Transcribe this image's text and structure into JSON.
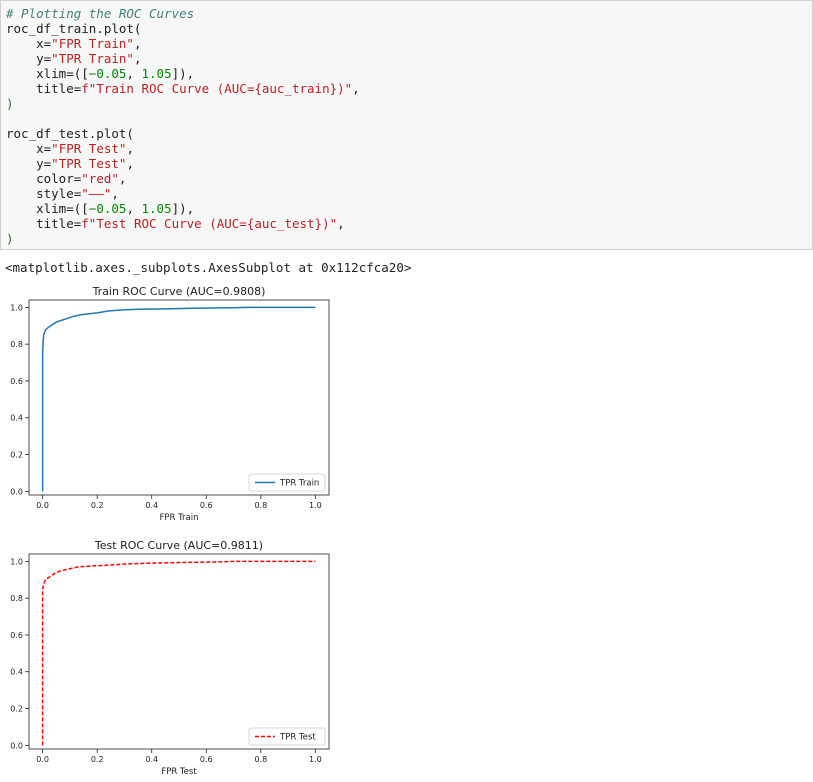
{
  "code_cell": {
    "comment": "# Plotting the ROC Curves",
    "train_call": "roc_df_train.plot(",
    "train_x_key": "x=",
    "train_x_val": "\"FPR Train\"",
    "train_y_key": "y=",
    "train_y_val": "\"TPR Train\"",
    "train_xlim_key": "xlim=([",
    "train_xlim_a": "−0.05",
    "train_xlim_b": "1.05",
    "train_title_key": "title=",
    "train_title_val": "f\"Train ROC Curve (AUC={auc_train})\"",
    "close": ")",
    "test_call": "roc_df_test.plot(",
    "test_x_key": "x=",
    "test_x_val": "\"FPR Test\"",
    "test_y_key": "y=",
    "test_y_val": "\"TPR Test\"",
    "test_color_key": "color=",
    "test_color_val": "\"red\"",
    "test_style_key": "style=",
    "test_style_val": "\"——\"",
    "test_xlim_key": "xlim=([",
    "test_xlim_a": "−0.05",
    "test_xlim_b": "1.05",
    "test_title_key": "title=",
    "test_title_val": "f\"Test ROC Curve (AUC={auc_test})\""
  },
  "output": {
    "repr": "<matplotlib.axes._subplots.AxesSubplot at 0x112cfca20>"
  },
  "chart_data": [
    {
      "type": "line",
      "title": "Train ROC Curve (AUC=0.9808)",
      "xlabel": "FPR Train",
      "ylabel": "",
      "xlim": [
        -0.05,
        1.05
      ],
      "ylim": [
        -0.02,
        1.04
      ],
      "xticks": [
        "0.0",
        "0.2",
        "0.4",
        "0.6",
        "0.8",
        "1.0"
      ],
      "yticks": [
        "0.0",
        "0.2",
        "0.4",
        "0.6",
        "0.8",
        "1.0"
      ],
      "legend": "lower right",
      "grid": false,
      "series": [
        {
          "name": "TPR Train",
          "color": "#1f77b4",
          "style": "solid",
          "x": [
            0,
            0,
            0.002,
            0.004,
            0.008,
            0.012,
            0.02,
            0.03,
            0.04,
            0.05,
            0.07,
            0.09,
            0.11,
            0.14,
            0.17,
            0.2,
            0.24,
            0.28,
            0.35,
            0.45,
            0.55,
            0.65,
            0.7,
            0.75,
            0.85,
            1.0
          ],
          "y": [
            0.0,
            0.75,
            0.82,
            0.85,
            0.87,
            0.88,
            0.89,
            0.9,
            0.91,
            0.92,
            0.93,
            0.94,
            0.95,
            0.96,
            0.965,
            0.97,
            0.98,
            0.985,
            0.99,
            0.992,
            0.995,
            0.997,
            0.998,
            1.0,
            1.0,
            1.0
          ]
        }
      ]
    },
    {
      "type": "line",
      "title": "Test ROC Curve (AUC=0.9811)",
      "xlabel": "FPR Test",
      "ylabel": "",
      "xlim": [
        -0.05,
        1.05
      ],
      "ylim": [
        -0.02,
        1.04
      ],
      "xticks": [
        "0.0",
        "0.2",
        "0.4",
        "0.6",
        "0.8",
        "1.0"
      ],
      "yticks": [
        "0.0",
        "0.2",
        "0.4",
        "0.6",
        "0.8",
        "1.0"
      ],
      "legend": "lower right",
      "grid": false,
      "series": [
        {
          "name": "TPR Test",
          "color": "#ff0000",
          "style": "dashed",
          "x": [
            0,
            0,
            0.005,
            0.01,
            0.02,
            0.03,
            0.04,
            0.05,
            0.07,
            0.1,
            0.13,
            0.18,
            0.25,
            0.3,
            0.38,
            0.45,
            0.55,
            0.65,
            0.7,
            0.8,
            1.0
          ],
          "y": [
            0.0,
            0.85,
            0.88,
            0.9,
            0.91,
            0.92,
            0.93,
            0.94,
            0.95,
            0.96,
            0.97,
            0.975,
            0.98,
            0.985,
            0.99,
            0.992,
            0.995,
            0.997,
            1.0,
            1.0,
            1.0
          ]
        }
      ]
    }
  ]
}
